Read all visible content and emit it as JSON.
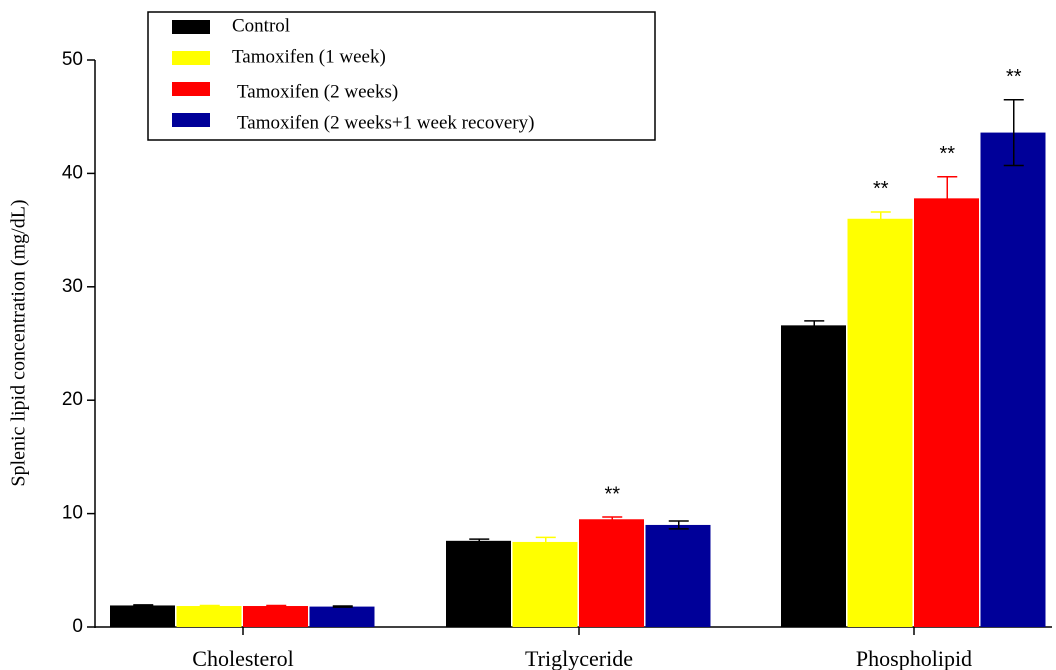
{
  "chart_data": {
    "type": "bar",
    "y_label": "Splenic lipid concentration (mg/dL)",
    "categories": [
      "Cholesterol",
      "Triglyceride",
      "Phospholipid"
    ],
    "series": [
      {
        "name": "Control",
        "color": "#000000",
        "error_color": "#000000",
        "values": [
          1.9,
          7.6,
          26.6
        ],
        "errors": [
          0.05,
          0.15,
          0.4
        ],
        "markers": [
          null,
          null,
          null
        ]
      },
      {
        "name": "Tamoxifen (1 week)",
        "color": "#ffff00",
        "error_color": "#ffff00",
        "values": [
          1.85,
          7.5,
          36.0
        ],
        "errors": [
          0.05,
          0.4,
          0.6
        ],
        "markers": [
          null,
          null,
          "**"
        ]
      },
      {
        "name": "Tamoxifen (2 weeks)",
        "color": "#ff0000",
        "error_color": "#ff0000",
        "values": [
          1.85,
          9.5,
          37.8
        ],
        "errors": [
          0.05,
          0.2,
          1.9
        ],
        "markers": [
          null,
          "**",
          "**"
        ]
      },
      {
        "name": "Tamoxifen (2 weeks+1 week recovery)",
        "color": "#000099",
        "error_color": "#000000",
        "values": [
          1.8,
          9.0,
          43.6
        ],
        "errors": [
          0.05,
          0.35,
          2.9
        ],
        "markers": [
          null,
          null,
          "**"
        ]
      }
    ],
    "ylim": [
      0,
      50
    ],
    "yticks": [
      0,
      10,
      20,
      30,
      40,
      50
    ],
    "grid": false,
    "legend": "top-left"
  }
}
